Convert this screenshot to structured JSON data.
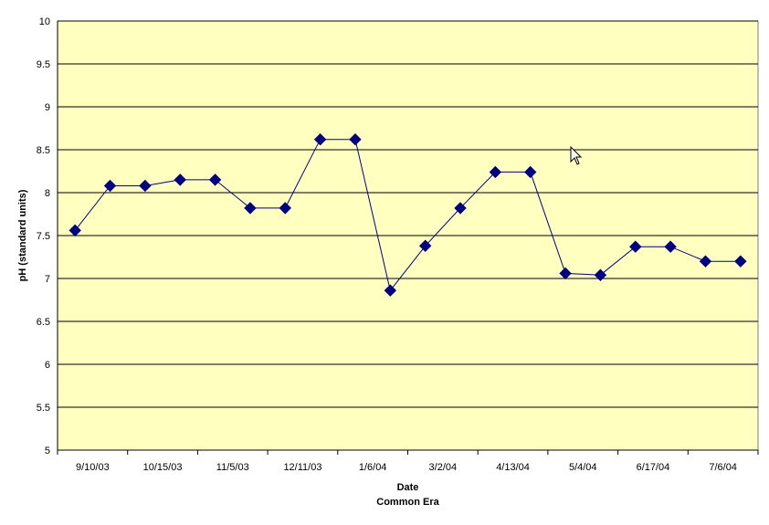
{
  "chart_data": {
    "type": "line",
    "title": "",
    "xlabel": "Date",
    "xlabel_sub": "Common Era",
    "ylabel": "pH (standard units)",
    "ylim": [
      5,
      10
    ],
    "y_ticks": [
      "5",
      "5.5",
      "6",
      "6.5",
      "7",
      "7.5",
      "8",
      "8.5",
      "9",
      "9.5",
      "10"
    ],
    "x_tick_labels": [
      "9/10/03",
      "10/15/03",
      "11/5/03",
      "12/11/03",
      "1/6/04",
      "3/2/04",
      "4/13/04",
      "5/4/04",
      "6/17/04",
      "7/6/04"
    ],
    "grid": "horizontal",
    "legend": "none",
    "series": [
      {
        "values": [
          7.56,
          8.08,
          8.08,
          8.15,
          8.15,
          7.82,
          7.82,
          8.62,
          8.62,
          6.86,
          7.38,
          7.82,
          8.24,
          8.24,
          7.06,
          7.04,
          7.37,
          7.37,
          7.2,
          7.2
        ],
        "color": "#000080"
      }
    ]
  },
  "colors": {
    "plot_bg": "#FFFFC0",
    "line": "#000080",
    "marker": "#000080",
    "grid": "#000000"
  },
  "cursor": "arrow-cursor-icon"
}
